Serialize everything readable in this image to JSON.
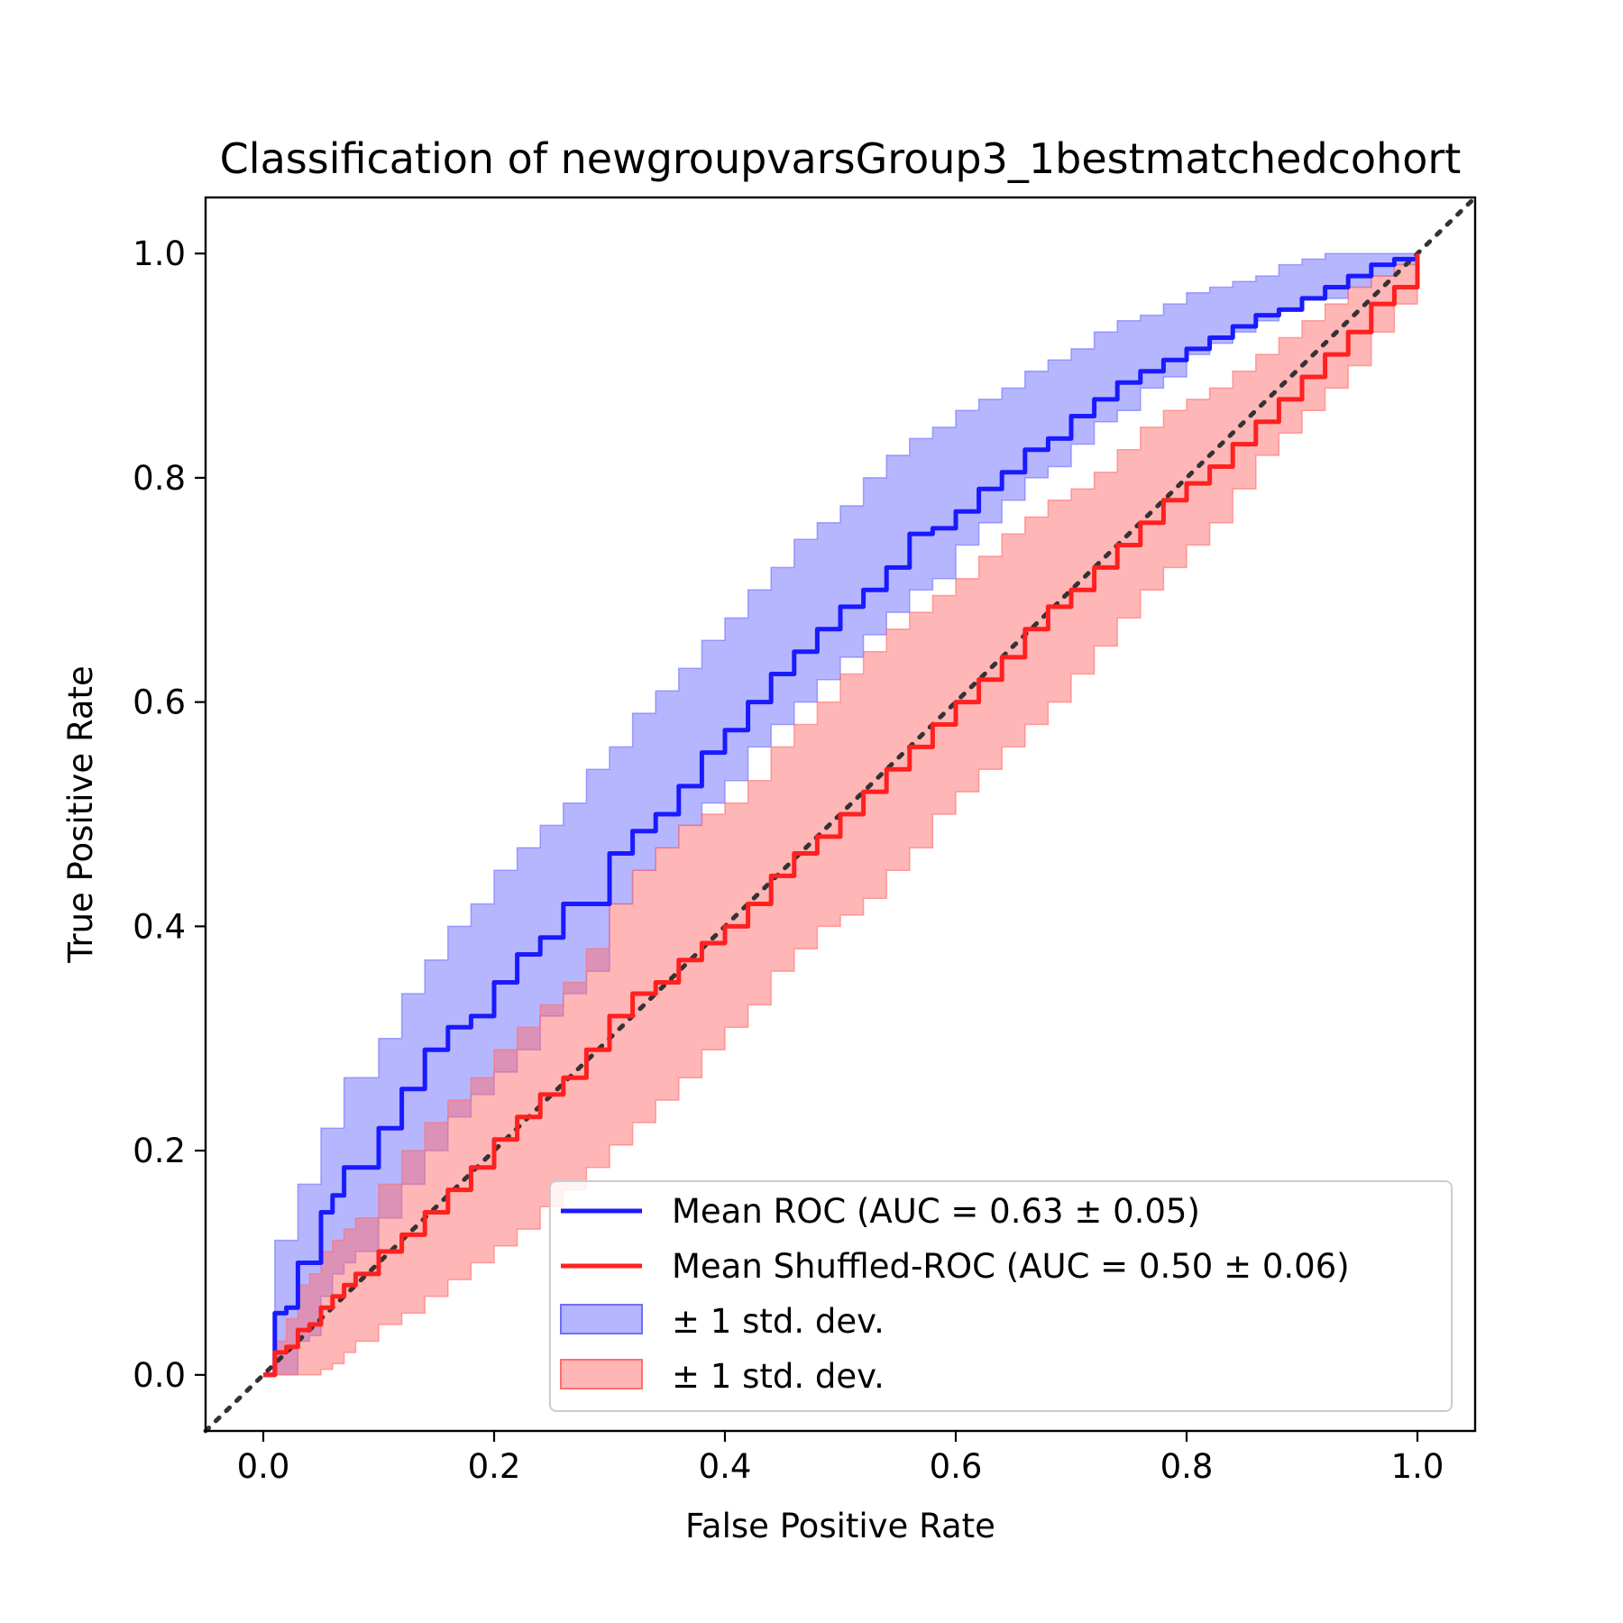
{
  "chart_data": {
    "type": "line",
    "title": "Classification of newgroupvarsGroup3_1bestmatchedcohort",
    "xlabel": "False Positive Rate",
    "ylabel": "True Positive Rate",
    "xlim": [
      -0.05,
      1.05
    ],
    "ylim": [
      -0.05,
      1.05
    ],
    "xticks": [
      "0.0",
      "0.2",
      "0.4",
      "0.6",
      "0.8",
      "1.0"
    ],
    "yticks": [
      "0.0",
      "0.2",
      "0.4",
      "0.6",
      "0.8",
      "1.0"
    ],
    "grid": false,
    "legend_position": "lower-right",
    "series": [
      {
        "name": "Mean ROC (AUC = 0.63 ± 0.05)",
        "kind": "line",
        "color": "#1a1aff",
        "x": [
          0,
          0.01,
          0.02,
          0.03,
          0.04,
          0.05,
          0.06,
          0.07,
          0.08,
          0.1,
          0.12,
          0.14,
          0.16,
          0.18,
          0.2,
          0.22,
          0.24,
          0.26,
          0.28,
          0.3,
          0.32,
          0.34,
          0.36,
          0.38,
          0.4,
          0.42,
          0.44,
          0.46,
          0.48,
          0.5,
          0.52,
          0.54,
          0.56,
          0.58,
          0.6,
          0.62,
          0.64,
          0.66,
          0.68,
          0.7,
          0.72,
          0.74,
          0.76,
          0.78,
          0.8,
          0.82,
          0.84,
          0.86,
          0.88,
          0.9,
          0.92,
          0.94,
          0.96,
          0.98,
          1.0
        ],
        "y": [
          0,
          0.055,
          0.06,
          0.1,
          0.1,
          0.145,
          0.16,
          0.185,
          0.185,
          0.22,
          0.255,
          0.29,
          0.31,
          0.32,
          0.35,
          0.375,
          0.39,
          0.42,
          0.42,
          0.465,
          0.485,
          0.5,
          0.525,
          0.555,
          0.575,
          0.6,
          0.625,
          0.645,
          0.665,
          0.685,
          0.7,
          0.72,
          0.75,
          0.755,
          0.77,
          0.79,
          0.805,
          0.825,
          0.835,
          0.855,
          0.87,
          0.885,
          0.895,
          0.905,
          0.915,
          0.925,
          0.935,
          0.945,
          0.95,
          0.96,
          0.97,
          0.98,
          0.99,
          0.995,
          1.0
        ]
      },
      {
        "name": "Mean Shuffled-ROC (AUC = 0.50 ± 0.06)",
        "kind": "line",
        "color": "#ff2020",
        "x": [
          0,
          0.01,
          0.02,
          0.03,
          0.04,
          0.05,
          0.06,
          0.07,
          0.08,
          0.1,
          0.12,
          0.14,
          0.16,
          0.18,
          0.2,
          0.22,
          0.24,
          0.26,
          0.28,
          0.3,
          0.32,
          0.34,
          0.36,
          0.38,
          0.4,
          0.42,
          0.44,
          0.46,
          0.48,
          0.5,
          0.52,
          0.54,
          0.56,
          0.58,
          0.6,
          0.62,
          0.64,
          0.66,
          0.68,
          0.7,
          0.72,
          0.74,
          0.76,
          0.78,
          0.8,
          0.82,
          0.84,
          0.86,
          0.88,
          0.9,
          0.92,
          0.94,
          0.96,
          0.98,
          1.0
        ],
        "y": [
          0,
          0.02,
          0.025,
          0.04,
          0.045,
          0.06,
          0.07,
          0.08,
          0.09,
          0.11,
          0.125,
          0.145,
          0.165,
          0.185,
          0.21,
          0.23,
          0.25,
          0.265,
          0.29,
          0.32,
          0.34,
          0.35,
          0.37,
          0.385,
          0.4,
          0.42,
          0.445,
          0.465,
          0.48,
          0.5,
          0.52,
          0.54,
          0.56,
          0.58,
          0.6,
          0.62,
          0.64,
          0.665,
          0.685,
          0.7,
          0.72,
          0.74,
          0.76,
          0.78,
          0.795,
          0.81,
          0.83,
          0.85,
          0.87,
          0.89,
          0.91,
          0.93,
          0.955,
          0.97,
          1.0
        ]
      },
      {
        "name": "± 1 std. dev.",
        "kind": "band",
        "color": "#6e6eff",
        "x": [
          0,
          0.01,
          0.02,
          0.03,
          0.04,
          0.05,
          0.06,
          0.07,
          0.08,
          0.1,
          0.12,
          0.14,
          0.16,
          0.18,
          0.2,
          0.22,
          0.24,
          0.26,
          0.28,
          0.3,
          0.32,
          0.34,
          0.36,
          0.38,
          0.4,
          0.42,
          0.44,
          0.46,
          0.48,
          0.5,
          0.52,
          0.54,
          0.56,
          0.58,
          0.6,
          0.62,
          0.64,
          0.66,
          0.68,
          0.7,
          0.72,
          0.74,
          0.76,
          0.78,
          0.8,
          0.82,
          0.84,
          0.86,
          0.88,
          0.9,
          0.92,
          0.94,
          0.96,
          0.98,
          1.0
        ],
        "lower": [
          0,
          0,
          0,
          0.03,
          0.035,
          0.07,
          0.09,
          0.1,
          0.11,
          0.14,
          0.17,
          0.2,
          0.23,
          0.25,
          0.27,
          0.29,
          0.32,
          0.34,
          0.36,
          0.42,
          0.45,
          0.47,
          0.49,
          0.51,
          0.53,
          0.56,
          0.58,
          0.6,
          0.62,
          0.64,
          0.66,
          0.68,
          0.7,
          0.71,
          0.74,
          0.76,
          0.78,
          0.8,
          0.81,
          0.83,
          0.85,
          0.86,
          0.88,
          0.89,
          0.91,
          0.92,
          0.93,
          0.94,
          0.95,
          0.96,
          0.96,
          0.97,
          0.98,
          0.99,
          1.0
        ],
        "upper": [
          0,
          0.12,
          0.12,
          0.17,
          0.17,
          0.22,
          0.22,
          0.265,
          0.265,
          0.3,
          0.34,
          0.37,
          0.4,
          0.42,
          0.45,
          0.47,
          0.49,
          0.51,
          0.54,
          0.56,
          0.59,
          0.61,
          0.63,
          0.655,
          0.675,
          0.7,
          0.72,
          0.745,
          0.76,
          0.775,
          0.8,
          0.82,
          0.835,
          0.845,
          0.86,
          0.87,
          0.88,
          0.895,
          0.905,
          0.915,
          0.93,
          0.94,
          0.945,
          0.955,
          0.965,
          0.97,
          0.975,
          0.98,
          0.99,
          0.995,
          1.0,
          1.0,
          1.0,
          1.0,
          1.0
        ]
      },
      {
        "name": "± 1 std. dev.",
        "kind": "band",
        "color": "#ff6e6e",
        "x": [
          0,
          0.01,
          0.02,
          0.03,
          0.04,
          0.05,
          0.06,
          0.07,
          0.08,
          0.1,
          0.12,
          0.14,
          0.16,
          0.18,
          0.2,
          0.22,
          0.24,
          0.26,
          0.28,
          0.3,
          0.32,
          0.34,
          0.36,
          0.38,
          0.4,
          0.42,
          0.44,
          0.46,
          0.48,
          0.5,
          0.52,
          0.54,
          0.56,
          0.58,
          0.6,
          0.62,
          0.64,
          0.66,
          0.68,
          0.7,
          0.72,
          0.74,
          0.76,
          0.78,
          0.8,
          0.82,
          0.84,
          0.86,
          0.88,
          0.9,
          0.92,
          0.94,
          0.96,
          0.98,
          1.0
        ],
        "lower": [
          0,
          0,
          0,
          0,
          0,
          0.005,
          0.01,
          0.02,
          0.03,
          0.045,
          0.055,
          0.07,
          0.085,
          0.1,
          0.115,
          0.13,
          0.15,
          0.165,
          0.185,
          0.205,
          0.225,
          0.245,
          0.265,
          0.29,
          0.31,
          0.33,
          0.36,
          0.38,
          0.4,
          0.41,
          0.425,
          0.45,
          0.47,
          0.5,
          0.52,
          0.54,
          0.56,
          0.58,
          0.6,
          0.625,
          0.65,
          0.675,
          0.7,
          0.72,
          0.74,
          0.76,
          0.79,
          0.82,
          0.84,
          0.86,
          0.88,
          0.9,
          0.93,
          0.955,
          1.0
        ],
        "upper": [
          0,
          0.03,
          0.05,
          0.08,
          0.09,
          0.11,
          0.12,
          0.13,
          0.14,
          0.17,
          0.2,
          0.225,
          0.245,
          0.265,
          0.29,
          0.31,
          0.33,
          0.35,
          0.38,
          0.42,
          0.45,
          0.47,
          0.49,
          0.5,
          0.51,
          0.53,
          0.56,
          0.58,
          0.6,
          0.625,
          0.645,
          0.665,
          0.68,
          0.695,
          0.71,
          0.73,
          0.75,
          0.765,
          0.78,
          0.79,
          0.805,
          0.825,
          0.845,
          0.86,
          0.87,
          0.88,
          0.895,
          0.91,
          0.925,
          0.94,
          0.955,
          0.97,
          0.98,
          0.99,
          1.0
        ]
      },
      {
        "name": "",
        "kind": "reference",
        "color": "#333333",
        "x": [
          -0.05,
          1.05
        ],
        "y": [
          -0.05,
          1.05
        ]
      }
    ]
  }
}
